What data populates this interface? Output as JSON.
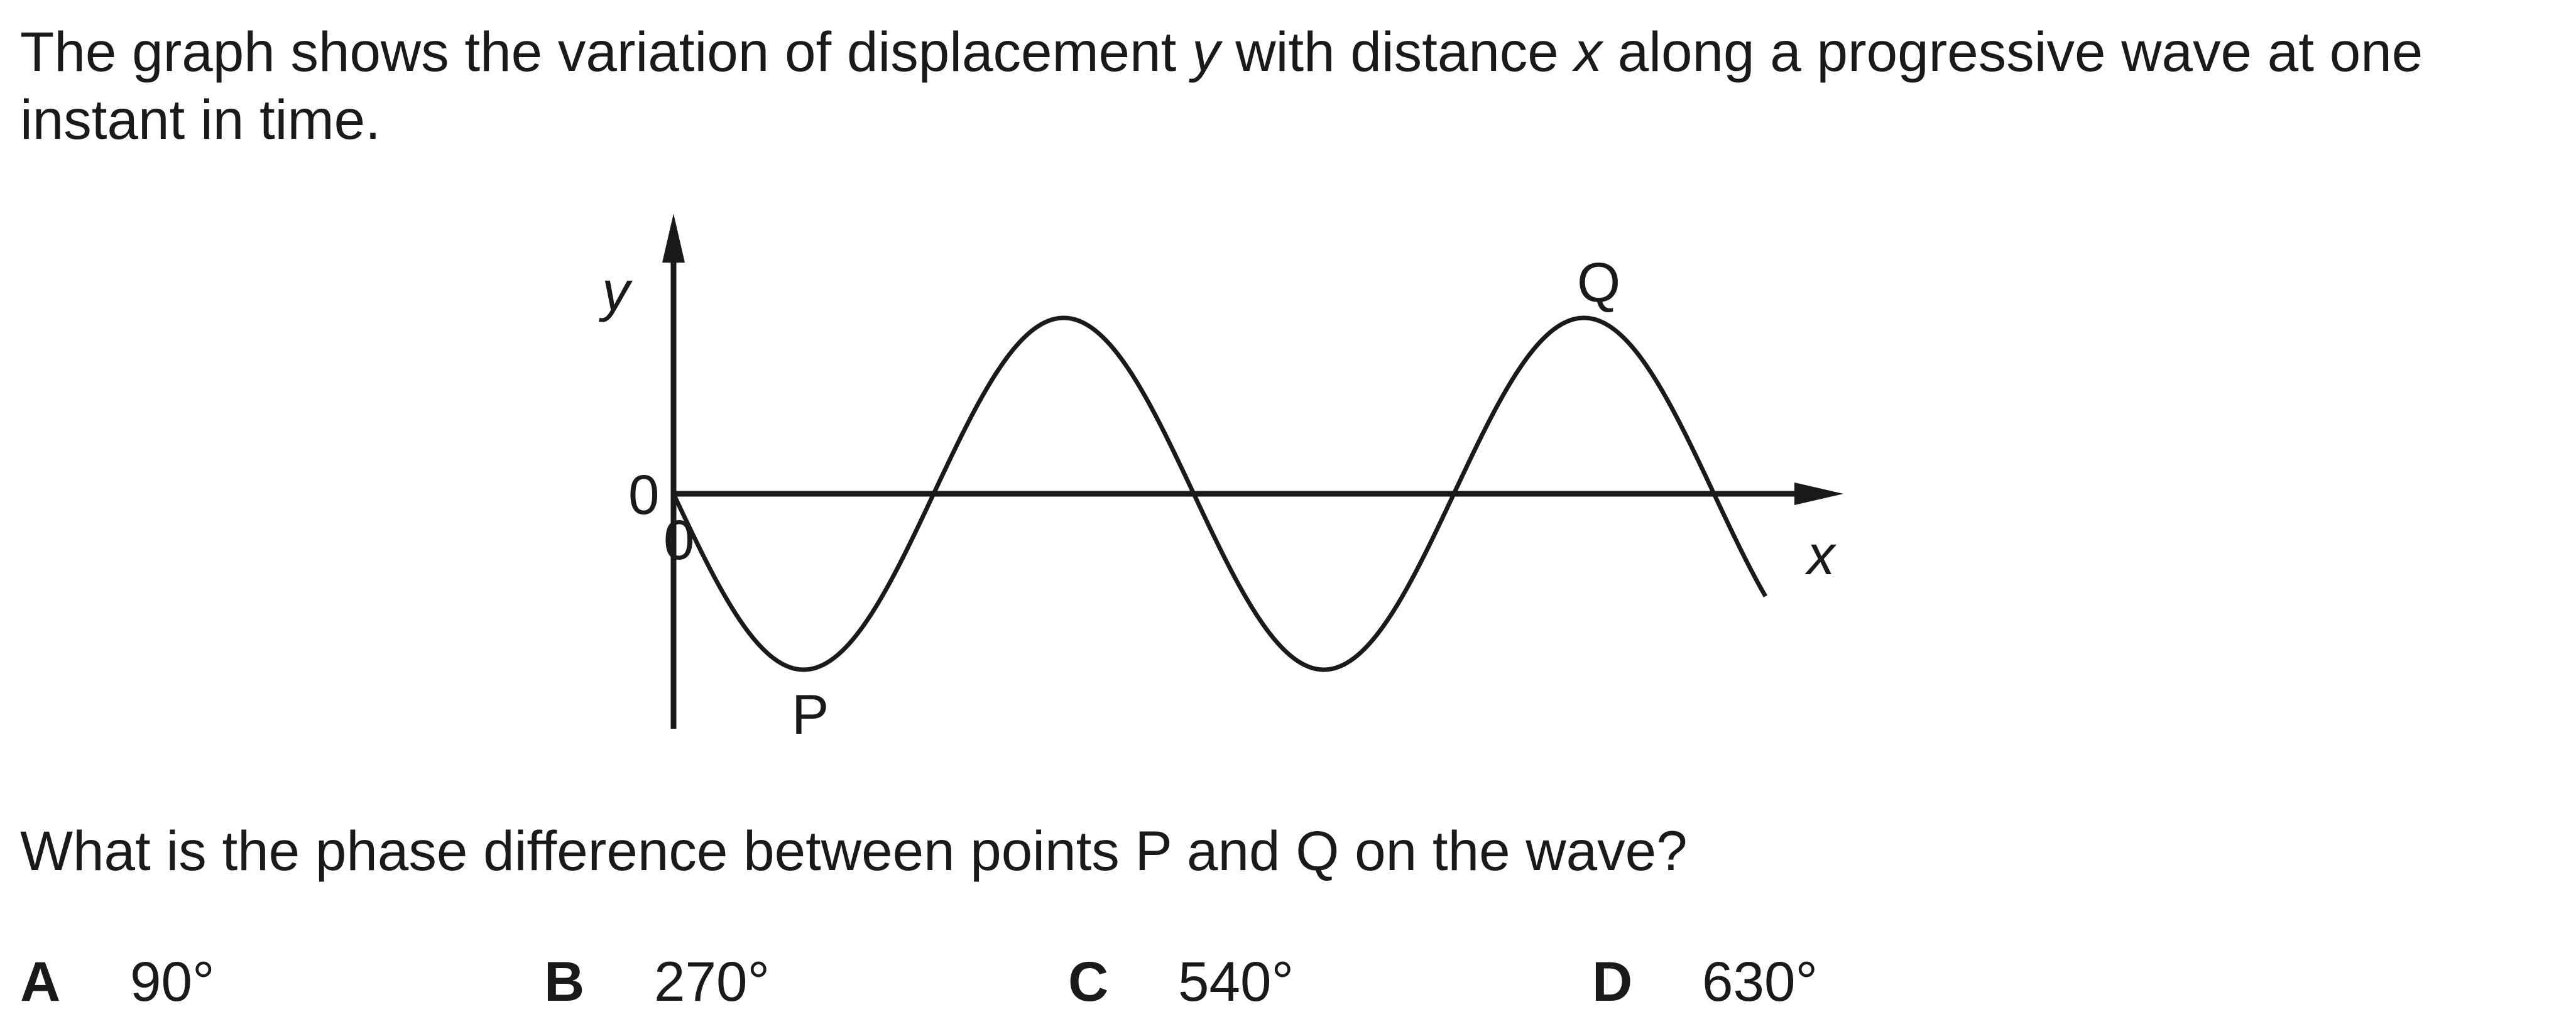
{
  "question": {
    "intro_part1": "The graph shows the variation of displacement ",
    "intro_var_y": "y",
    "intro_part2": " with distance ",
    "intro_var_x": "x",
    "intro_part3": " along a progressive wave at one instant in time.",
    "prompt": "What is the phase difference between points P and Q on the wave?"
  },
  "diagram": {
    "y_axis_label": "y",
    "x_axis_label": "x",
    "origin_label_upper": "0",
    "origin_label_lower": "0",
    "point_p_label": "P",
    "point_q_label": "Q",
    "wave": {
      "start_phase": "begins at 0 going down",
      "wavelengths_shown": 2.1
    }
  },
  "options": [
    {
      "letter": "A",
      "value": "90°"
    },
    {
      "letter": "B",
      "value": "270°"
    },
    {
      "letter": "C",
      "value": "540°"
    },
    {
      "letter": "D",
      "value": "630°"
    }
  ]
}
